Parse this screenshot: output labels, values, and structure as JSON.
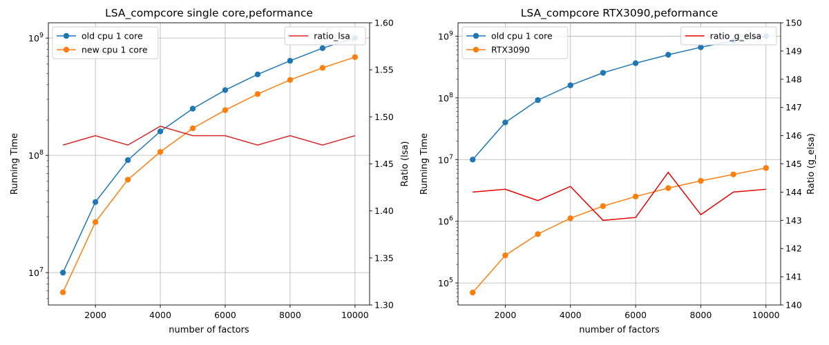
{
  "chart_data": [
    {
      "type": "line",
      "title": "LSA_compcore single core,peformance",
      "xlabel": "number of factors",
      "ylabel": "Running Time",
      "y2label": "Ratio (lsa)",
      "x": [
        1000,
        2000,
        3000,
        4000,
        5000,
        6000,
        7000,
        8000,
        9000,
        10000
      ],
      "xlim": [
        550,
        10450
      ],
      "xticks": [
        2000,
        4000,
        6000,
        8000,
        10000
      ],
      "xtick_labels": [
        "2000",
        "4000",
        "6000",
        "8000",
        "10000"
      ],
      "yscale": "log",
      "ylim": [
        5300000,
        1350000000
      ],
      "yticks": [
        10000000,
        100000000,
        1000000000
      ],
      "ytick_labels": [
        "10^7",
        "10^8",
        "10^9"
      ],
      "y2lim": [
        1.3,
        1.6
      ],
      "y2ticks": [
        1.3,
        1.35,
        1.4,
        1.45,
        1.5,
        1.55,
        1.6
      ],
      "y2tick_labels": [
        "1.30",
        "1.35",
        "1.40",
        "1.45",
        "1.50",
        "1.55",
        "1.60"
      ],
      "grid": true,
      "series": [
        {
          "name": "old cpu 1 core",
          "axis": "left",
          "marker": true,
          "color": "#1f77b4",
          "values": [
            10000000,
            40000000,
            91000000,
            160000000,
            250000000,
            360000000,
            490000000,
            640000000,
            820000000,
            1000000000
          ]
        },
        {
          "name": "new cpu 1 core",
          "axis": "left",
          "marker": true,
          "color": "#ff7f0e",
          "values": [
            6800000,
            27000000,
            62000000,
            107000000,
            170000000,
            243000000,
            333000000,
            440000000,
            557000000,
            688000000
          ]
        },
        {
          "name": "ratio_lsa",
          "axis": "right",
          "marker": false,
          "color": "#d62728",
          "values": [
            1.47,
            1.48,
            1.47,
            1.49,
            1.48,
            1.48,
            1.47,
            1.48,
            1.47,
            1.48
          ]
        }
      ],
      "legend_left": {
        "placement": "upper-left",
        "entries": [
          "old cpu 1 core",
          "new cpu 1 core"
        ]
      },
      "legend_right": {
        "placement": "upper-right",
        "entries": [
          "ratio_lsa"
        ]
      }
    },
    {
      "type": "line",
      "title": "LSA_compcore RTX3090,peformance",
      "xlabel": "number of factors",
      "ylabel": "Running Time",
      "y2label": "Ratio (g_elsa)",
      "x": [
        1000,
        2000,
        3000,
        4000,
        5000,
        6000,
        7000,
        8000,
        9000,
        10000
      ],
      "xlim": [
        550,
        10450
      ],
      "xticks": [
        2000,
        4000,
        6000,
        8000,
        10000
      ],
      "xtick_labels": [
        "2000",
        "4000",
        "6000",
        "8000",
        "10000"
      ],
      "yscale": "log",
      "ylim": [
        44000,
        1650000000
      ],
      "yticks": [
        100000,
        1000000,
        10000000,
        100000000,
        1000000000
      ],
      "ytick_labels": [
        "10^5",
        "10^6",
        "10^7",
        "10^8",
        "10^9"
      ],
      "y2lim": [
        140,
        150
      ],
      "y2ticks": [
        140,
        141,
        142,
        143,
        144,
        145,
        146,
        147,
        148,
        149,
        150
      ],
      "y2tick_labels": [
        "140",
        "141",
        "142",
        "143",
        "144",
        "145",
        "146",
        "147",
        "148",
        "149",
        "150"
      ],
      "grid": true,
      "series": [
        {
          "name": "old cpu 1 core",
          "axis": "left",
          "marker": true,
          "color": "#1f77b4",
          "values": [
            10000000,
            40000000,
            92000000,
            160000000,
            255000000,
            365000000,
            500000000,
            660000000,
            840000000,
            1000000000
          ]
        },
        {
          "name": "RTX3090",
          "axis": "left",
          "marker": true,
          "color": "#ff7f0e",
          "values": [
            70000,
            280000,
            620000,
            1120000,
            1760000,
            2520000,
            3450000,
            4520000,
            5750000,
            7300000
          ]
        },
        {
          "name": "ratio_g_elsa",
          "axis": "right",
          "marker": false,
          "color": "#e50000",
          "values": [
            144.0,
            144.1,
            143.7,
            144.2,
            143.0,
            143.1,
            144.7,
            143.2,
            144.0,
            144.1
          ]
        }
      ],
      "legend_left": {
        "placement": "upper-left",
        "entries": [
          "old cpu 1 core",
          "RTX3090"
        ]
      },
      "legend_right": {
        "placement": "upper-right",
        "entries": [
          "ratio_g_elsa"
        ]
      }
    }
  ]
}
